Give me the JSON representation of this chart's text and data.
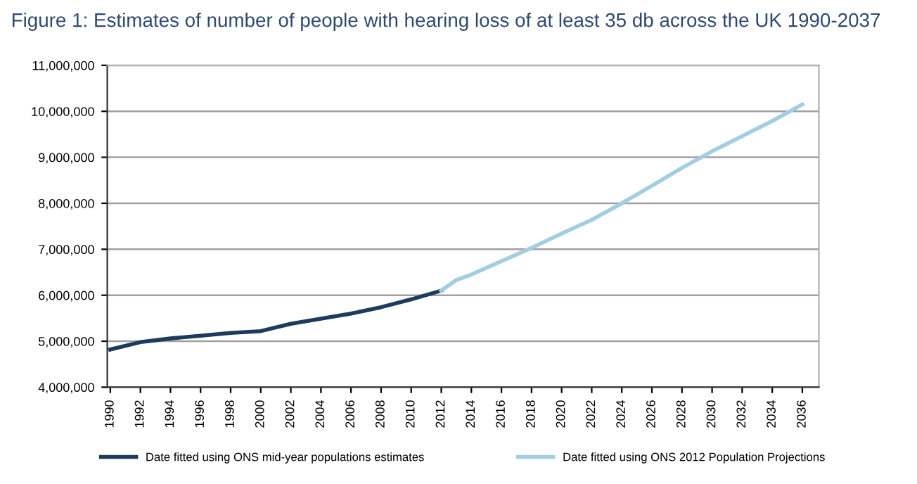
{
  "chart_data": {
    "type": "line",
    "title": "Figure 1: Estimates of number of people with hearing loss of at least 35 db across the UK 1990-2037",
    "series": [
      {
        "name": "Date fitted using ONS mid-year populations estimates",
        "color": "#1f3b5c",
        "x": [
          1990,
          1992,
          1994,
          1996,
          1998,
          2000,
          2002,
          2004,
          2006,
          2008,
          2010,
          2012
        ],
        "values": [
          4820000,
          4980000,
          5060000,
          5120000,
          5180000,
          5220000,
          5380000,
          5490000,
          5600000,
          5740000,
          5910000,
          6100000
        ]
      },
      {
        "name": "Date fitted using ONS 2012 Population Projections",
        "color": "#a3cde0",
        "x": [
          2012,
          2013,
          2014,
          2016,
          2018,
          2020,
          2022,
          2024,
          2026,
          2028,
          2030,
          2032,
          2034,
          2036
        ],
        "values": [
          6100000,
          6330000,
          6450000,
          6740000,
          7030000,
          7340000,
          7640000,
          8000000,
          8380000,
          8770000,
          9130000,
          9460000,
          9790000,
          10150000
        ]
      }
    ],
    "xlim": [
      1989.8,
      2037.1
    ],
    "xticks": [
      1990,
      1992,
      1994,
      1996,
      1998,
      2000,
      2002,
      2004,
      2006,
      2008,
      2010,
      2012,
      2014,
      2016,
      2018,
      2020,
      2022,
      2024,
      2026,
      2028,
      2030,
      2032,
      2034,
      2036
    ],
    "ylim": [
      4000000,
      11000000
    ],
    "yticks": [
      {
        "value": 4000000,
        "label": "4,000,000"
      },
      {
        "value": 5000000,
        "label": "5,000,000"
      },
      {
        "value": 6000000,
        "label": "6,000,000"
      },
      {
        "value": 7000000,
        "label": "7,000,000"
      },
      {
        "value": 8000000,
        "label": "8,000,000"
      },
      {
        "value": 9000000,
        "label": "9,000,000"
      },
      {
        "value": 10000000,
        "label": "10,000,000"
      },
      {
        "value": 11000000,
        "label": "11,000,000"
      }
    ],
    "grid": "y",
    "legend": "bottom",
    "marker": "none",
    "line_style": "solid"
  }
}
